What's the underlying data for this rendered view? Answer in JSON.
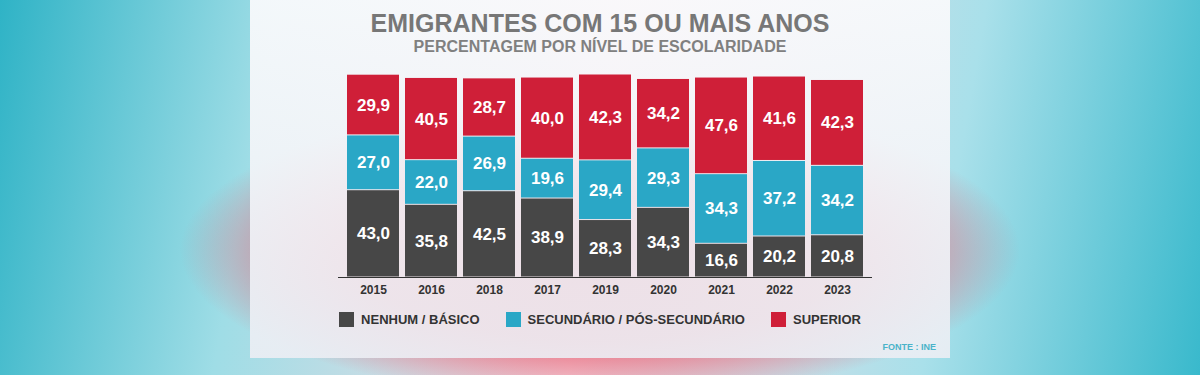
{
  "chart_data": {
    "type": "bar",
    "title": "EMIGRANTES COM 15 OU MAIS ANOS",
    "subtitle": "PERCENTAGEM POR NÍVEL DE ESCOLARIDADE",
    "source": "FONTE : INE",
    "categories": [
      "2015",
      "2016",
      "2018",
      "2017",
      "2019",
      "2020",
      "2021",
      "2022",
      "2023"
    ],
    "series": [
      {
        "name": "NENHUM / BÁSICO",
        "color": "#474747",
        "values": [
          43.0,
          35.8,
          42.5,
          38.9,
          28.3,
          34.3,
          16.6,
          20.2,
          20.8
        ],
        "value_labels": [
          "43,0",
          "35,8",
          "42,5",
          "38,9",
          "28,3",
          "34,3",
          "16,6",
          "20,2",
          "20,8"
        ]
      },
      {
        "name": "SECUNDÁRIO / PÓS-SECUNDÁRIO",
        "color": "#2aa7c6",
        "values": [
          27.0,
          22.0,
          26.9,
          19.6,
          29.4,
          29.3,
          34.3,
          37.2,
          34.2
        ],
        "value_labels": [
          "27,0",
          "22,0",
          "26,9",
          "19,6",
          "29,4",
          "29,3",
          "34,3",
          "37,2",
          "34,2"
        ]
      },
      {
        "name": "SUPERIOR",
        "color": "#cf1f38",
        "values": [
          29.9,
          40.5,
          28.7,
          40.0,
          42.3,
          34.2,
          47.6,
          41.6,
          42.3
        ],
        "value_labels": [
          "29,9",
          "40,5",
          "28,7",
          "40,0",
          "42,3",
          "34,2",
          "47,6",
          "41,6",
          "42,3"
        ]
      }
    ],
    "ylim": [
      0,
      100
    ],
    "stacked": true,
    "data_labels": true,
    "tick_labels": "x",
    "legend": "bottom"
  }
}
